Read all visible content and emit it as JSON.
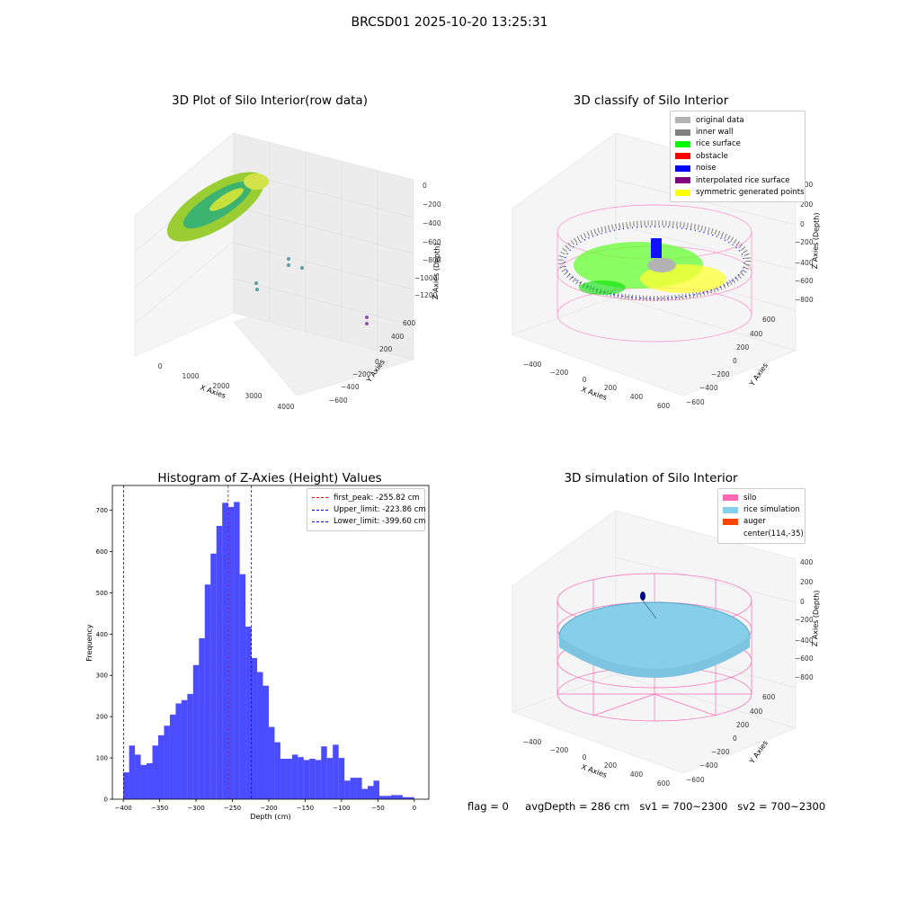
{
  "figure_title": "BRCSD01 2025-10-20 13:25:31",
  "panels": {
    "raw": {
      "title": "3D Plot of Silo Interior(row data)",
      "xlabel": "X Axies",
      "ylabel": "Y Axies",
      "zlabel": "Z Axies (Depth)",
      "xticks": [
        "0",
        "1000",
        "2000",
        "3000",
        "4000"
      ],
      "yticks": [
        "600",
        "400",
        "200",
        "0",
        "−200",
        "−400",
        "−600"
      ],
      "zticks": [
        "0",
        "−200",
        "−400",
        "−600",
        "−800",
        "−1000",
        "−1200"
      ]
    },
    "classify": {
      "title": "3D classify of Silo Interior",
      "xlabel": "X Axies",
      "ylabel": "Y Axies",
      "zlabel": "Z Axies (Depth)",
      "xticks": [
        "−400",
        "−200",
        "0",
        "200",
        "400",
        "600"
      ],
      "yticks": [
        "600",
        "400",
        "200",
        "0",
        "−200",
        "−400",
        "−600"
      ],
      "zticks": [
        "400",
        "200",
        "0",
        "−200",
        "−400",
        "−600",
        "−800"
      ],
      "legend": [
        {
          "label": "original data",
          "color": "#b3b3b3"
        },
        {
          "label": "inner wall",
          "color": "#808080"
        },
        {
          "label": "rice surface",
          "color": "#00ff00"
        },
        {
          "label": "obstacle",
          "color": "#ff0000"
        },
        {
          "label": "noise",
          "color": "#0000ff"
        },
        {
          "label": "interpolated rice surface",
          "color": "#800080"
        },
        {
          "label": "symmetric generated points",
          "color": "#ffff00"
        }
      ]
    },
    "simulation": {
      "title": "3D simulation of Silo Interior",
      "xlabel": "X Axies",
      "ylabel": "Y Axies",
      "zlabel": "Z Axies (Depth)",
      "xticks": [
        "−400",
        "−200",
        "0",
        "200",
        "400",
        "600"
      ],
      "yticks": [
        "600",
        "400",
        "200",
        "0",
        "−200",
        "−400",
        "−600"
      ],
      "zticks": [
        "400",
        "200",
        "0",
        "−200",
        "−400",
        "−600",
        "−800"
      ],
      "legend": [
        {
          "label": "silo",
          "color": "#ff69b4"
        },
        {
          "label": "rice simulation",
          "color": "#87ceeb"
        },
        {
          "label": "auger",
          "color": "#ff4500"
        },
        {
          "label": "center(114,-35)",
          "color": ""
        }
      ]
    }
  },
  "footer": {
    "flag": "flag = 0",
    "avg_depth": "avgDepth = 286 cm",
    "sv1": "sv1 = 700~2300",
    "sv2": "sv2 = 700~2300"
  },
  "chart_data": {
    "type": "bar",
    "title": "Histogram of Z-Axies (Height) Values",
    "xlabel": "Depth (cm)",
    "ylabel": "Frequency",
    "xlim": [
      -415,
      20
    ],
    "ylim": [
      0,
      760
    ],
    "xticks": [
      -400,
      -350,
      -300,
      -250,
      -200,
      -150,
      -100,
      -50,
      0
    ],
    "yticks": [
      0,
      100,
      200,
      300,
      400,
      500,
      600,
      700
    ],
    "bin_start": -400,
    "bin_width": 8,
    "values": [
      65,
      130,
      108,
      83,
      87,
      130,
      155,
      178,
      205,
      232,
      240,
      255,
      325,
      390,
      520,
      595,
      662,
      718,
      708,
      720,
      545,
      418,
      342,
      308,
      275,
      175,
      138,
      98,
      98,
      108,
      102,
      95,
      98,
      95,
      128,
      100,
      132,
      100,
      45,
      52,
      52,
      25,
      32,
      45,
      8,
      8,
      10,
      10,
      5,
      5
    ],
    "color": "#0000ff",
    "vlines": [
      {
        "x": -255.82,
        "label": "first_peak: -255.82 cm",
        "color": "#ff0000"
      },
      {
        "x": -223.86,
        "label": "Upper_limit: -223.86 cm",
        "color": "#0000ff"
      },
      {
        "x": -399.6,
        "label": "Lower_limit: -399.60 cm",
        "color": "#0000ff"
      }
    ],
    "legend_position": "upper right"
  }
}
